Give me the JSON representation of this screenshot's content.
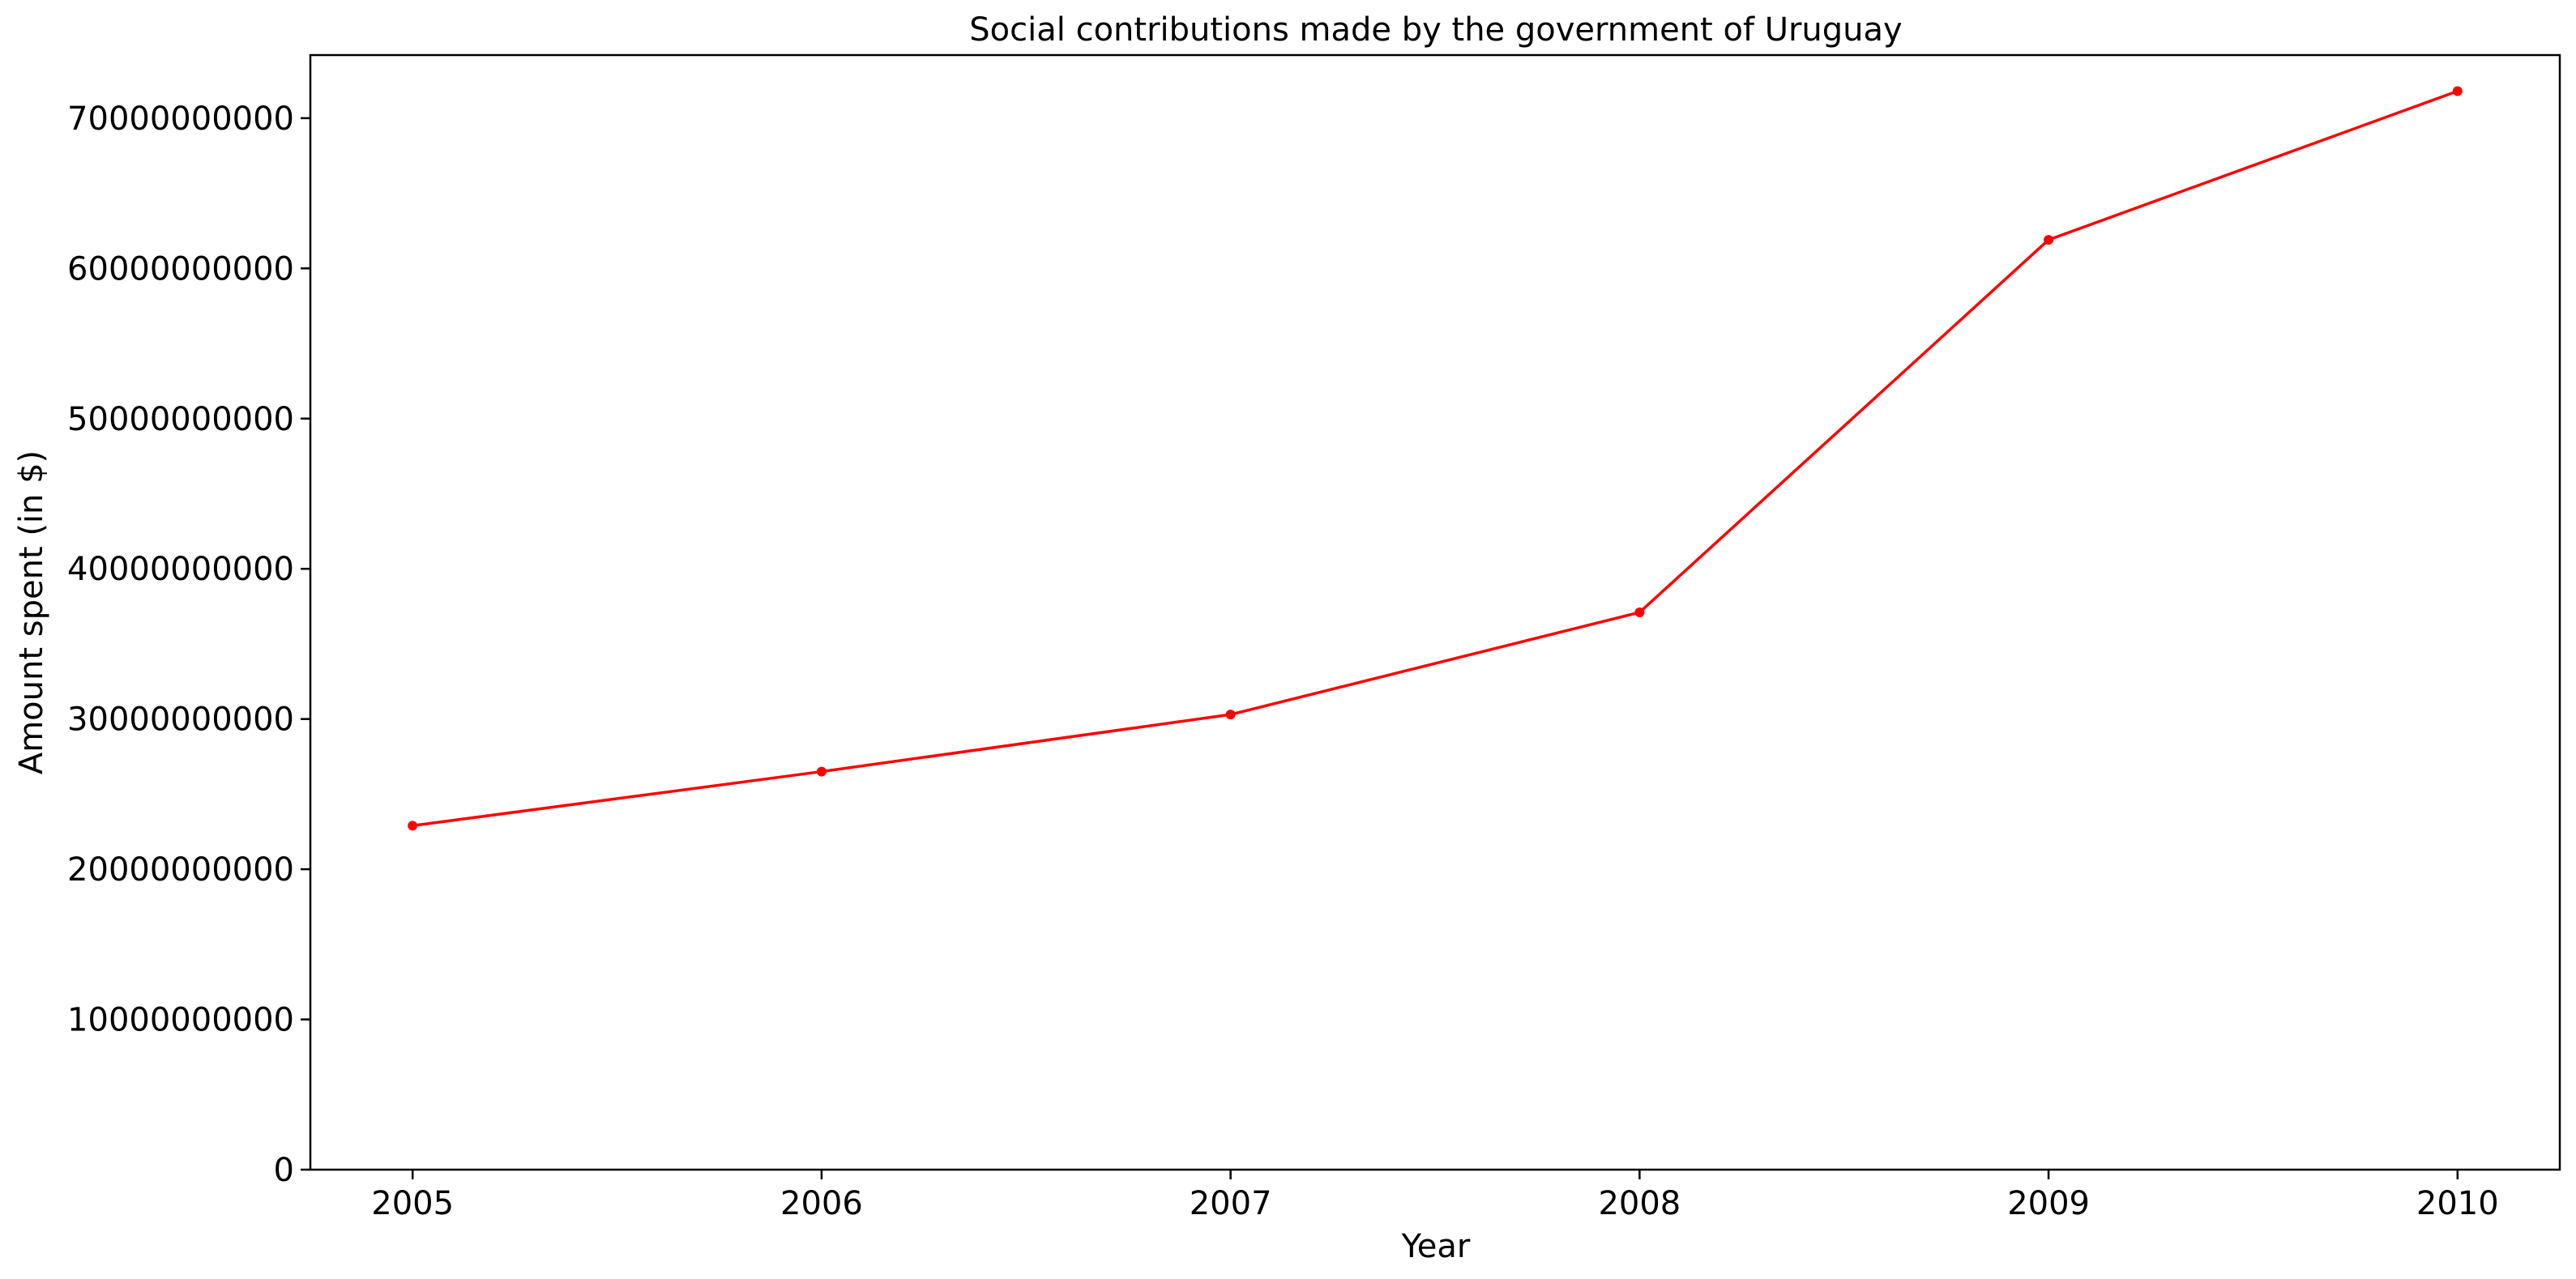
{
  "chart_data": {
    "type": "line",
    "title": "Social contributions made by the government of Uruguay",
    "xlabel": "Year",
    "ylabel": "Amount spent (in $)",
    "x": [
      "2005",
      "2006",
      "2007",
      "2008",
      "2009",
      "2010"
    ],
    "series": [
      {
        "values": [
          22900000000,
          26500000000,
          30300000000,
          37100000000,
          61900000000,
          71800000000
        ],
        "color": "#ff0000",
        "marker": "circle"
      }
    ],
    "yticks": [
      0,
      10000000000,
      20000000000,
      30000000000,
      40000000000,
      50000000000,
      60000000000,
      70000000000
    ],
    "ytick_labels": [
      "0",
      "10000000000",
      "20000000000",
      "30000000000",
      "40000000000",
      "50000000000",
      "60000000000",
      "70000000000"
    ],
    "ylim": [
      0,
      74200000000
    ],
    "xlim": [
      2004.75,
      2010.25
    ],
    "grid": false,
    "legend": "none"
  }
}
